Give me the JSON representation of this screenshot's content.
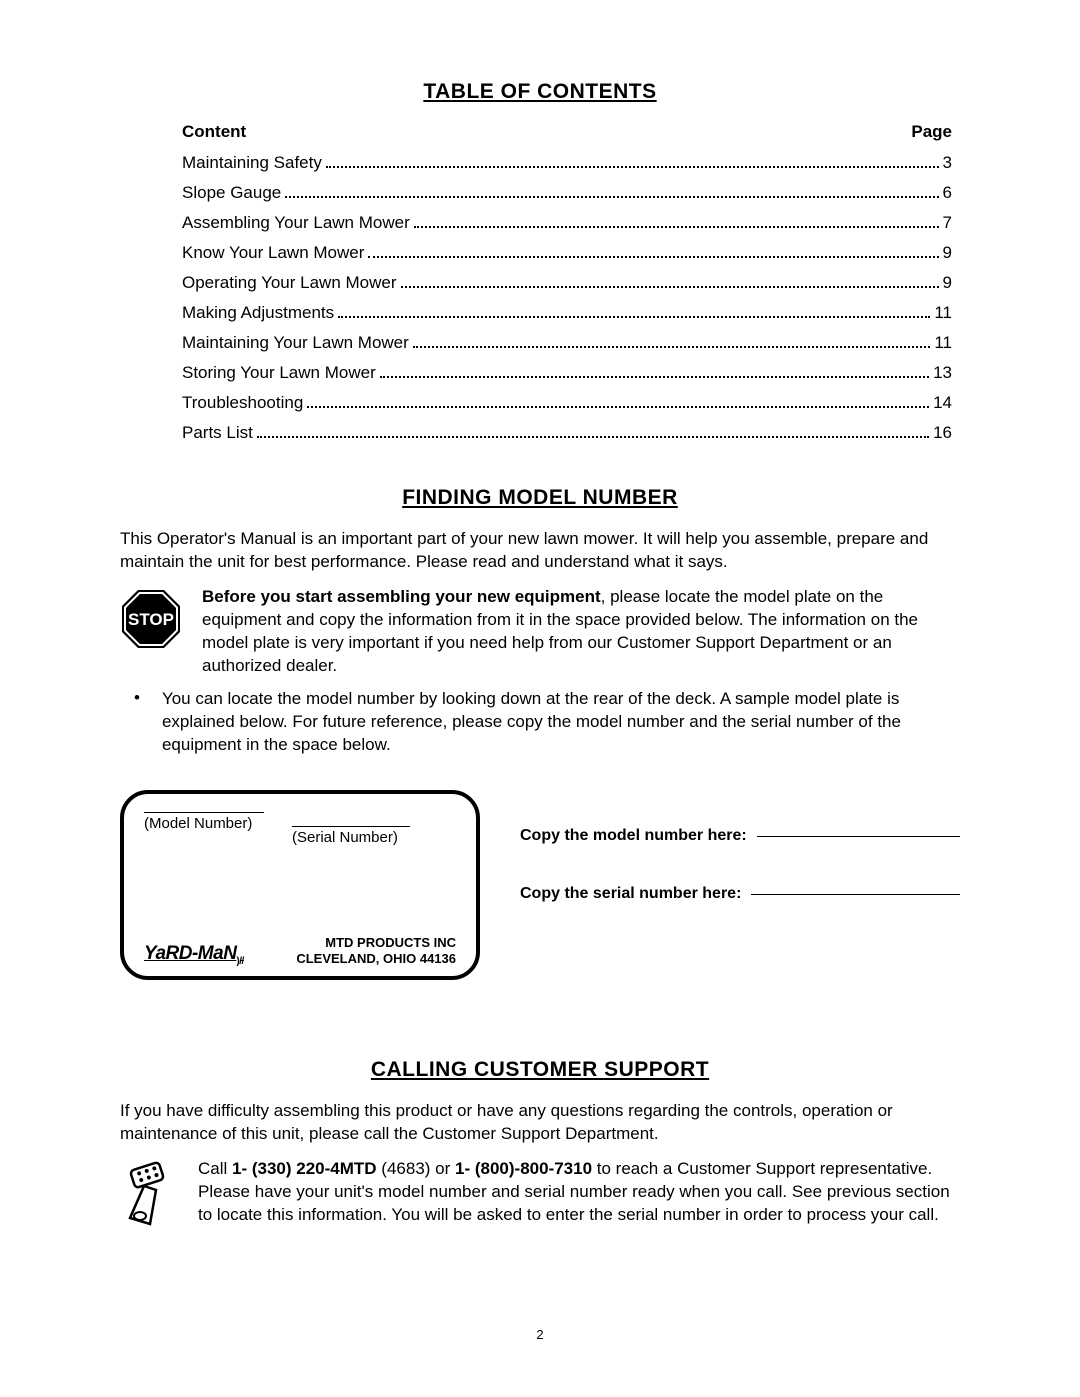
{
  "toc": {
    "heading": "TABLE OF CONTENTS",
    "header_content": "Content",
    "header_page": "Page",
    "items": [
      {
        "label": "Maintaining Safety",
        "page": "3"
      },
      {
        "label": "Slope Gauge",
        "page": "6"
      },
      {
        "label": "Assembling Your Lawn Mower",
        "page": "7"
      },
      {
        "label": "Know Your Lawn Mower",
        "page": "9"
      },
      {
        "label": "Operating Your Lawn Mower",
        "page": "9"
      },
      {
        "label": "Making Adjustments",
        "page": "11"
      },
      {
        "label": "Maintaining Your Lawn Mower",
        "page": "11"
      },
      {
        "label": "Storing Your Lawn Mower",
        "page": "13"
      },
      {
        "label": "Troubleshooting",
        "page": "14"
      },
      {
        "label": "Parts List",
        "page": "16"
      }
    ]
  },
  "finding": {
    "heading": "FINDING MODEL NUMBER",
    "intro": "This Operator's Manual is an important part of your new lawn mower. It will help you assemble, prepare and maintain the unit for best performance. Please read and understand what it says.",
    "stop_label": "STOP",
    "stop_bold": "Before you start assembling your new equipment",
    "stop_rest": ", please locate the model plate on the equipment and copy the information from it in the space provided below. The information on the model plate is very important if you need help from our Customer Support Department or an authorized dealer.",
    "bullet": "You can locate the model number by looking down at the rear of the deck. A sample model plate is explained below. For future reference, please copy the model number and the serial number of the equipment in the space below.",
    "plate": {
      "model_label": "(Model Number)",
      "serial_label": "(Serial Number)",
      "logo_text": "YaRD-MaN",
      "company_line1": "MTD PRODUCTS INC",
      "company_line2": "CLEVELAND, OHIO  44136"
    },
    "copy_model": "Copy the model number here:",
    "copy_serial": "Copy the serial number here:"
  },
  "calling": {
    "heading": "CALLING CUSTOMER SUPPORT",
    "intro": "If you have difficulty assembling this product or have any questions regarding the controls, operation or maintenance of this unit, please call the Customer Support Department.",
    "call_prefix": "Call ",
    "phone1": "1- (330) 220-4MTD",
    "phone1_suffix": " (4683) or ",
    "phone2": "1- (800)-800-7310",
    "call_rest": " to reach a Customer Support representative. Please have your unit's model number and serial number ready when you call. See previous section to locate this information. You will be asked to enter the serial number in order to process your call."
  },
  "page_number": "2",
  "colors": {
    "text": "#000000",
    "background": "#ffffff"
  }
}
